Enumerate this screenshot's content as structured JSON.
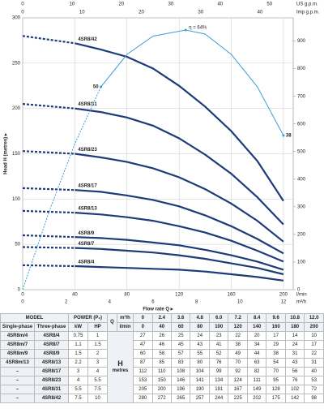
{
  "chart_data": {
    "type": "line",
    "x_label": "Flow rate Q ▸",
    "y_label": "Head H (metres) ▸",
    "x_unit": "l/min",
    "x": [
      0,
      40,
      60,
      80,
      100,
      120,
      140,
      160,
      180,
      200
    ],
    "xlim": [
      0,
      207.5
    ],
    "xticks": [
      0,
      40,
      80,
      120,
      160,
      200
    ],
    "ylim": [
      0,
      300
    ],
    "yticks": [
      0,
      50,
      100,
      150,
      200,
      250,
      300
    ],
    "y2lim": [
      0,
      984
    ],
    "y2ticks": [
      0,
      100,
      200,
      300,
      400,
      500,
      600,
      700,
      800,
      900
    ],
    "grid": true,
    "m3h_axis": {
      "label": "m³/h",
      "lim": [
        0,
        12.45
      ],
      "ticks": [
        0,
        2,
        4,
        6,
        8,
        10,
        12
      ]
    },
    "us_axis": {
      "label": "US g.p.m.",
      "lim": [
        0,
        54.8
      ],
      "ticks": [
        0,
        10,
        20,
        30,
        40,
        50
      ]
    },
    "imp_axis": {
      "label": "Imp g.p.m.",
      "lim": [
        0,
        45.6
      ],
      "ticks": [
        0,
        10,
        20,
        30,
        40
      ]
    },
    "series": [
      {
        "name": "4SR8/42",
        "color": "#1d3b78",
        "values": [
          280,
          272,
          265,
          257,
          244,
          225,
          202,
          175,
          142,
          98
        ]
      },
      {
        "name": "4SR8/31",
        "color": "#1d3b78",
        "values": [
          205,
          200,
          196,
          190,
          181,
          167,
          149,
          128,
          102,
          72
        ]
      },
      {
        "name": "4SR8/23",
        "color": "#1d3b78",
        "values": [
          153,
          150,
          146,
          141,
          134,
          124,
          111,
          95,
          76,
          53
        ]
      },
      {
        "name": "4SR8/17",
        "color": "#1d3b78",
        "values": [
          112,
          110,
          108,
          104,
          99,
          92,
          82,
          70,
          56,
          40
        ]
      },
      {
        "name": "4SR8/13",
        "color": "#1d3b78",
        "values": [
          87,
          85,
          83,
          80,
          76,
          70,
          63,
          54,
          43,
          31
        ]
      },
      {
        "name": "4SR8/9",
        "color": "#1d3b78",
        "values": [
          60,
          58,
          57,
          55,
          52,
          49,
          44,
          38,
          31,
          22
        ]
      },
      {
        "name": "4SR8/7",
        "color": "#1d3b78",
        "values": [
          47,
          46,
          45,
          43,
          41,
          38,
          34,
          29,
          24,
          17
        ]
      },
      {
        "name": "4SR8/4",
        "color": "#1d3b78",
        "values": [
          27,
          26,
          25,
          24,
          23,
          22,
          20,
          17,
          14,
          10
        ]
      }
    ],
    "efficiency": {
      "color": "#3a9fd6",
      "peak_label": "η = 64%",
      "ylim": [
        0,
        67
      ],
      "x": [
        0,
        20,
        40,
        60,
        80,
        100,
        125,
        140,
        160,
        180,
        200
      ],
      "values": [
        0,
        19,
        36,
        50,
        58,
        62.5,
        64,
        63,
        58,
        50,
        38
      ]
    }
  },
  "table": {
    "model": "MODEL",
    "single": "Single-phase",
    "three": "Three-phase",
    "power": "POWER (P₂)",
    "kw": "kW",
    "hp": "HP",
    "q": "Q",
    "h": "H",
    "metres": "metres",
    "m3h": "m³/h",
    "lmin": "l/min",
    "q_m3h": [
      "0",
      "2.4",
      "3.6",
      "4.8",
      "6.0",
      "7.2",
      "8.4",
      "9.6",
      "10.8",
      "12.0"
    ],
    "q_lmin": [
      0,
      40,
      60,
      80,
      100,
      120,
      140,
      160,
      180,
      200
    ],
    "rows": [
      [
        "4SR8m/4",
        "4SR8/4",
        0.75,
        1,
        27,
        26,
        25,
        24,
        23,
        22,
        20,
        17,
        14,
        10
      ],
      [
        "4SR8m/7",
        "4SR8/7",
        1.1,
        1.5,
        47,
        46,
        45,
        43,
        41,
        38,
        34,
        29,
        24,
        17
      ],
      [
        "4SR8m/9",
        "4SR8/9",
        1.5,
        2,
        60,
        58,
        57,
        55,
        52,
        49,
        44,
        38,
        31,
        22
      ],
      [
        "4SR8m/13",
        "4SR8/13",
        2.2,
        3,
        87,
        85,
        83,
        80,
        76,
        70,
        63,
        54,
        43,
        31
      ],
      [
        "–",
        "4SR8/17",
        3,
        4,
        112,
        110,
        108,
        104,
        99,
        92,
        82,
        70,
        56,
        40
      ],
      [
        "–",
        "4SR8/23",
        4,
        5.5,
        153,
        150,
        146,
        141,
        134,
        124,
        111,
        95,
        76,
        53
      ],
      [
        "–",
        "4SR8/31",
        5.5,
        7.5,
        205,
        200,
        196,
        190,
        181,
        167,
        149,
        128,
        102,
        72
      ],
      [
        "–",
        "4SR8/42",
        7.5,
        10,
        280,
        272,
        265,
        257,
        244,
        225,
        202,
        175,
        142,
        98
      ]
    ]
  }
}
